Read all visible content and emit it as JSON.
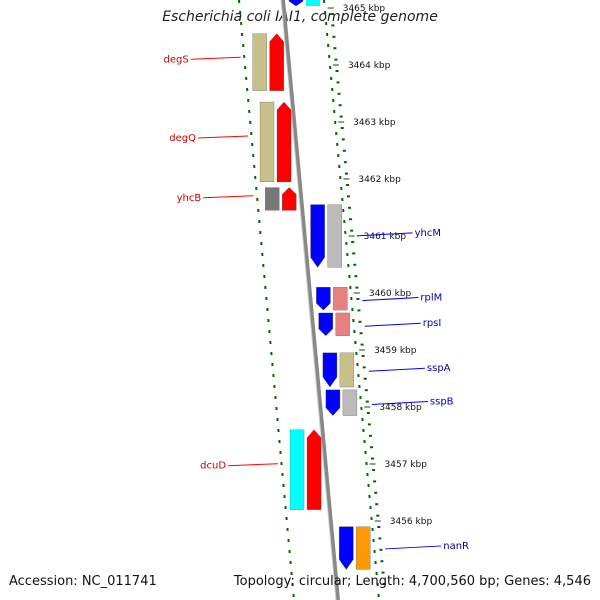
{
  "title": "Escherichia coli IAI1, complete genome",
  "footer": {
    "accession": "Accession: NC_011741",
    "topology": "Topology: circular; Length: 4,700,560 bp; Genes: 4,546"
  },
  "colors": {
    "forward_strand": "#ff0000",
    "reverse_strand": "#0000ff",
    "backbone": "#888888",
    "green_ticks": "#006600",
    "label_red": "#cc0000",
    "label_blue": "#0000aa"
  },
  "ticks": [
    {
      "label": "3465 kbp",
      "kbp": 3465
    },
    {
      "label": "3464 kbp",
      "kbp": 3464
    },
    {
      "label": "3463 kbp",
      "kbp": 3463
    },
    {
      "label": "3462 kbp",
      "kbp": 3462
    },
    {
      "label": "3461 kbp",
      "kbp": 3461
    },
    {
      "label": "3460 kbp",
      "kbp": 3460
    },
    {
      "label": "3459 kbp",
      "kbp": 3459
    },
    {
      "label": "3458 kbp",
      "kbp": 3458
    },
    {
      "label": "3457 kbp",
      "kbp": 3457
    },
    {
      "label": "3456 kbp",
      "kbp": 3456
    }
  ],
  "genes_left": [
    {
      "name": "degS",
      "start_kbp": 3464.55,
      "end_kbp": 3463.55
    },
    {
      "name": "degQ",
      "start_kbp": 3463.35,
      "end_kbp": 3461.95
    },
    {
      "name": "yhcB",
      "start_kbp": 3461.85,
      "end_kbp": 3461.45
    },
    {
      "name": "dcuD",
      "start_kbp": 3457.6,
      "end_kbp": 3456.2
    }
  ],
  "genes_right": [
    {
      "name": "yhcM",
      "start_kbp": 3461.55,
      "end_kbp": 3460.45,
      "fill": "#0000ff"
    },
    {
      "name": "rplM",
      "start_kbp": 3460.1,
      "end_kbp": 3459.7,
      "fill": "#0000ff"
    },
    {
      "name": "rpsI",
      "start_kbp": 3459.65,
      "end_kbp": 3459.25,
      "fill": "#0000ff"
    },
    {
      "name": "sspA",
      "start_kbp": 3458.95,
      "end_kbp": 3458.35,
      "fill": "#0000ff"
    },
    {
      "name": "sspB",
      "start_kbp": 3458.3,
      "end_kbp": 3457.85,
      "fill": "#0000ff"
    },
    {
      "name": "nanR",
      "start_kbp": 3455.9,
      "end_kbp": 3455.15,
      "fill": "#0000ff"
    }
  ],
  "labels_right": [
    "yhcM",
    "rplM",
    "rpsI",
    "sspA",
    "sspB",
    "nanR"
  ],
  "labels_left": [
    "degS",
    "degQ",
    "yhcB",
    "dcuD"
  ]
}
